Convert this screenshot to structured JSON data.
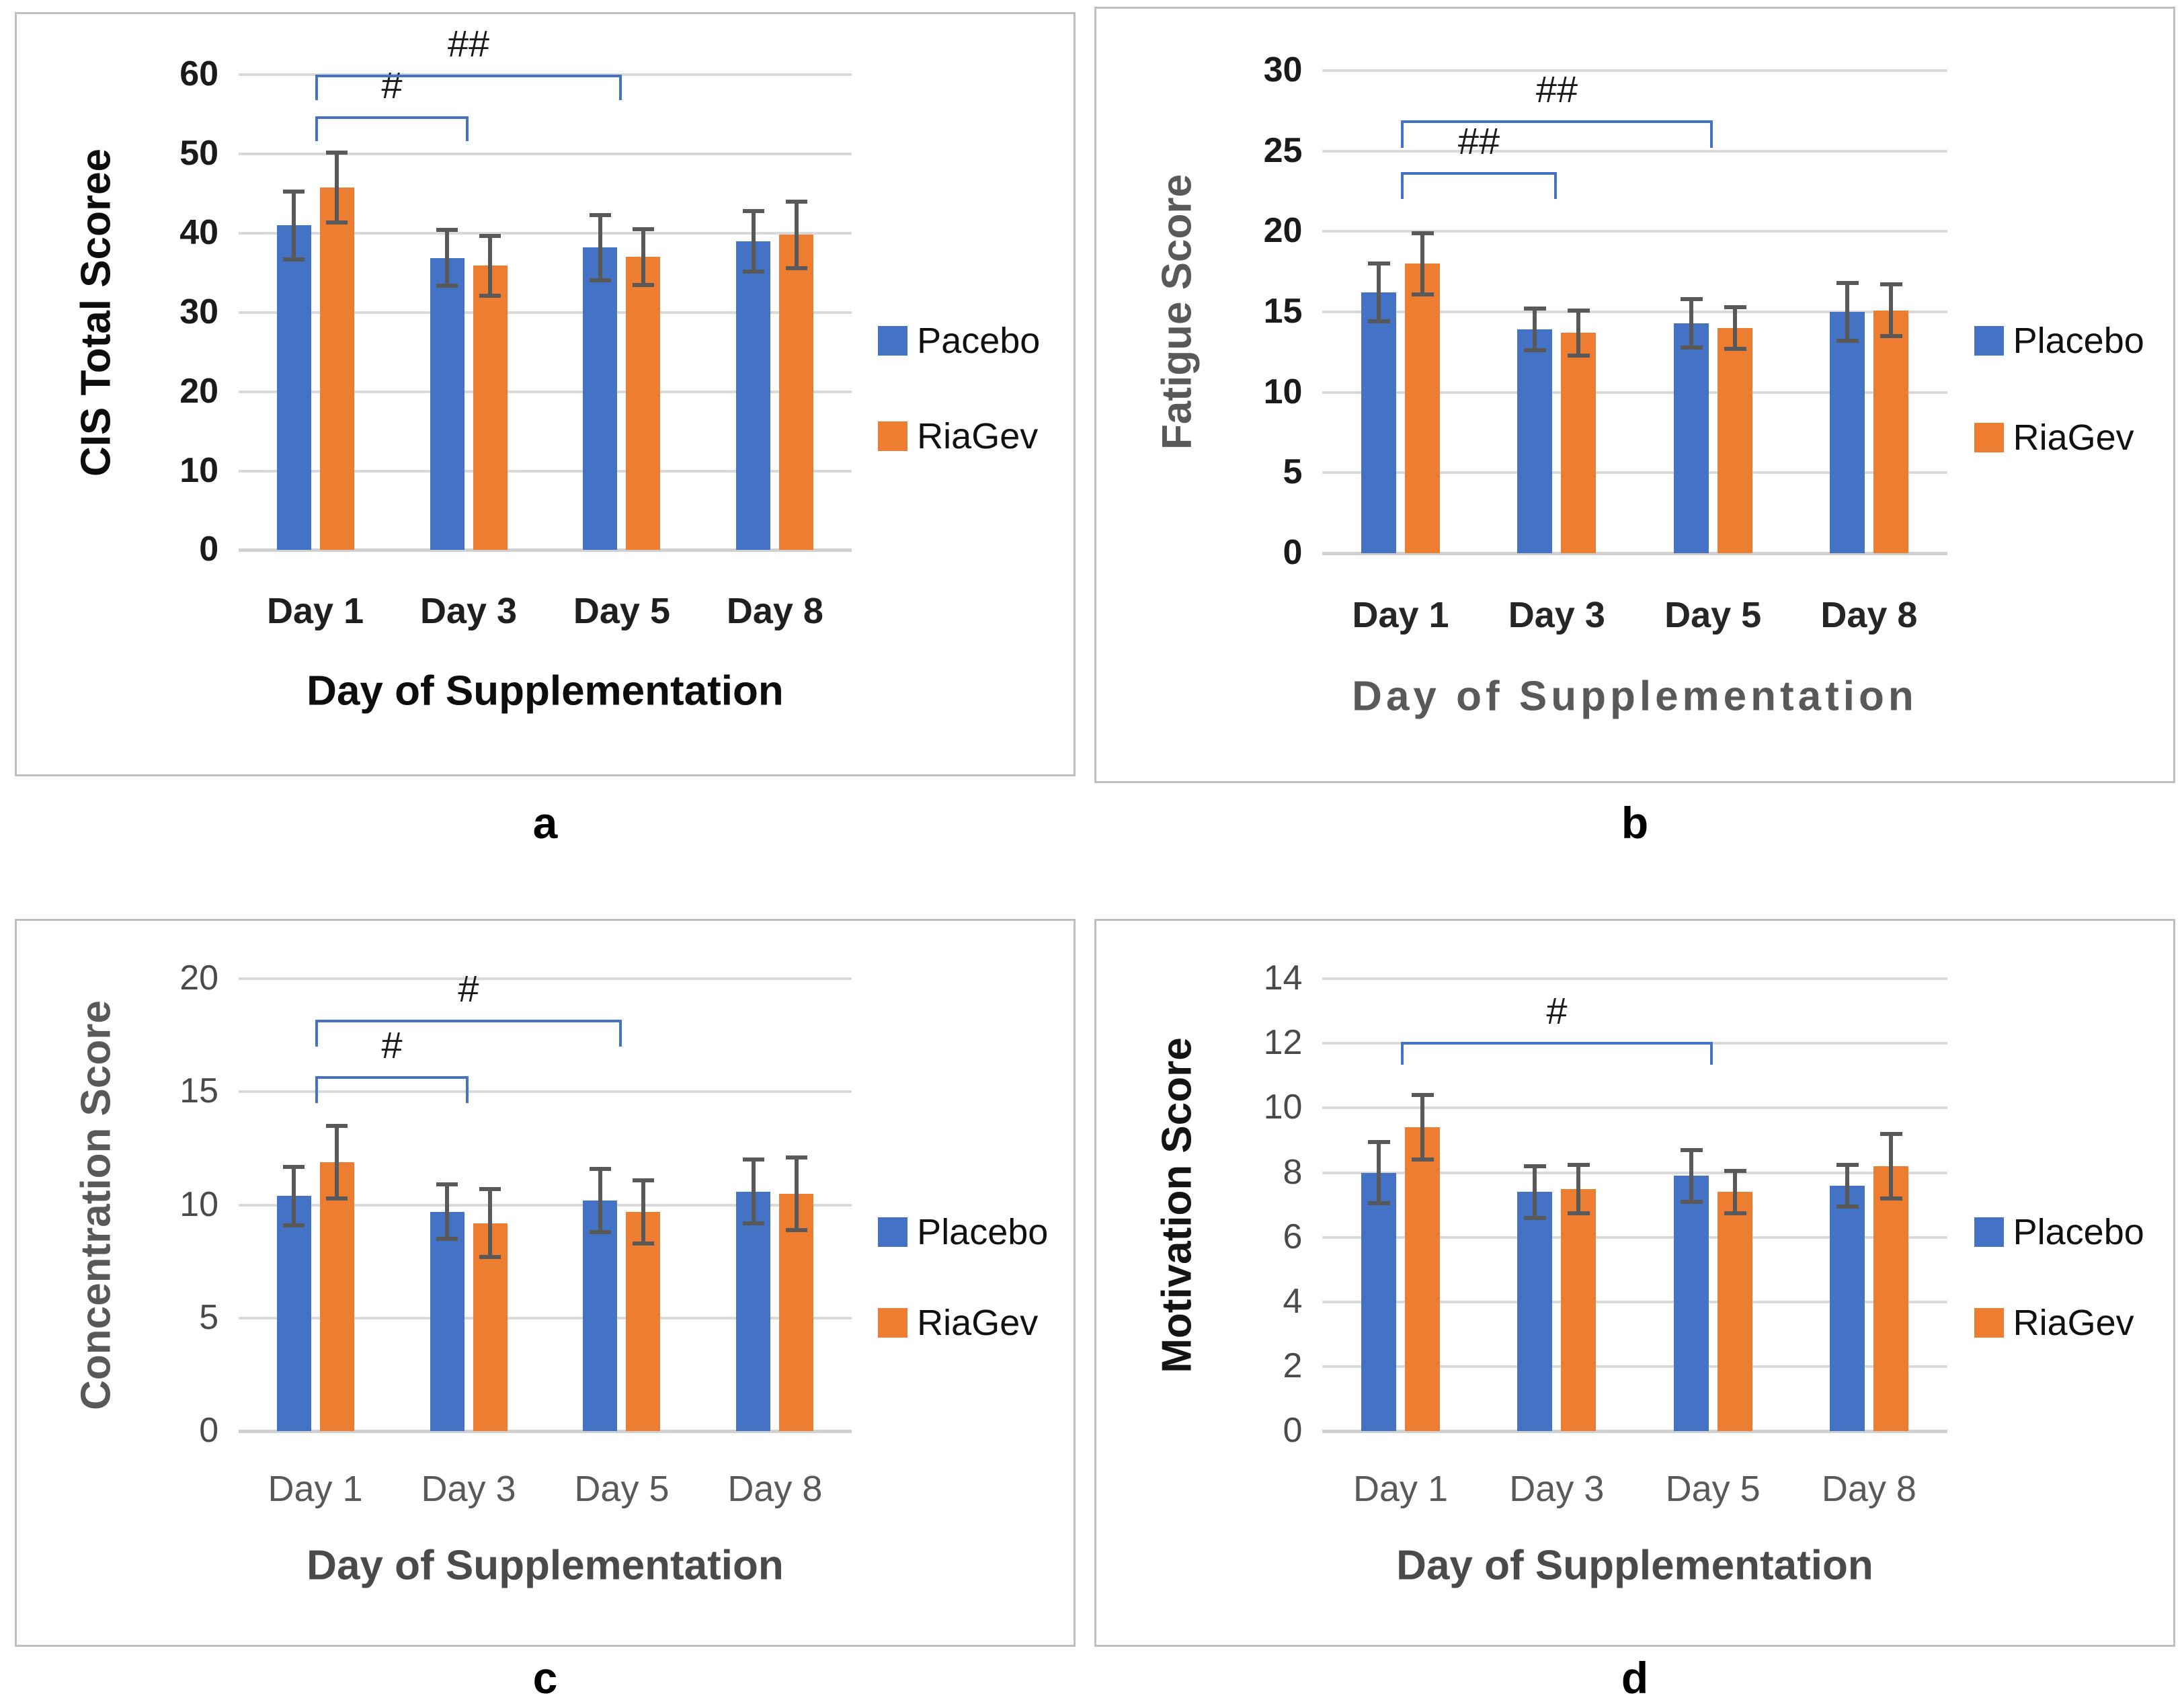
{
  "figure": {
    "background": "#ffffff",
    "panel_border_color": "#bfbfbf"
  },
  "colors": {
    "grid": "#d9d9d9",
    "axis_line": "#cfcfcf",
    "error_bar": "#595959",
    "bracket": "#4472c4",
    "bracket_label": "#1a1a1a",
    "legend_text": "#111111"
  },
  "chart_data": [
    {
      "type": "bar",
      "panel_label": "a",
      "ylabel": "CIS Total Scoree",
      "xlabel": "Day of Supplementation",
      "ylim": [
        0,
        60
      ],
      "yticks": [
        0,
        10,
        20,
        30,
        40,
        50,
        60
      ],
      "grid": true,
      "legend_position": "right",
      "categories": [
        "Day 1",
        "Day 3",
        "Day 5",
        "Day 8"
      ],
      "series": [
        {
          "name": "Pacebo",
          "color": "#4472C4",
          "values": [
            41,
            36.9,
            38.2,
            39
          ],
          "errors": [
            4.3,
            3.5,
            4.1,
            3.8
          ]
        },
        {
          "name": "RiaGev",
          "color": "#ED7D31",
          "values": [
            45.8,
            35.9,
            37,
            39.8
          ],
          "errors": [
            4.4,
            3.8,
            3.5,
            4.2
          ]
        }
      ],
      "significance_brackets": [
        {
          "label": "#",
          "from_category": "Day 1",
          "to_category": "Day 3",
          "from": 0,
          "to": 1,
          "y": 54.8,
          "drop": 3.2
        },
        {
          "label": "##",
          "from_category": "Day 1",
          "to_category": "Day 5",
          "from": 0,
          "to": 2,
          "y": 60,
          "drop": 3.2
        }
      ],
      "style": {
        "ylabel_color": "#0d0d0d",
        "xlabel_color": "#0d0d0d",
        "tick_color": "#1a1a1a",
        "category_color": "#1f1f1f"
      }
    },
    {
      "type": "bar",
      "panel_label": "b",
      "ylabel": "Fatigue Score",
      "xlabel": "Day of Supplementation",
      "ylim": [
        0,
        30
      ],
      "yticks": [
        0,
        5,
        10,
        15,
        20,
        25,
        30
      ],
      "grid": true,
      "legend_position": "right",
      "categories": [
        "Day 1",
        "Day 3",
        "Day 5",
        "Day 8"
      ],
      "series": [
        {
          "name": "Placebo",
          "color": "#4472C4",
          "values": [
            16.2,
            13.9,
            14.3,
            15
          ],
          "errors": [
            1.8,
            1.3,
            1.5,
            1.8
          ]
        },
        {
          "name": "RiaGev",
          "color": "#ED7D31",
          "values": [
            18,
            13.7,
            14,
            15.1
          ],
          "errors": [
            1.9,
            1.4,
            1.3,
            1.6
          ]
        }
      ],
      "significance_brackets": [
        {
          "label": "##",
          "from_category": "Day 1",
          "to_category": "Day 3",
          "from": 0,
          "to": 1,
          "y": 23.7,
          "drop": 1.7
        },
        {
          "label": "##",
          "from_category": "Day 1",
          "to_category": "Day 5",
          "from": 0,
          "to": 2,
          "y": 26.9,
          "drop": 1.7
        }
      ],
      "style": {
        "ylabel_color": "#595959",
        "xlabel_color": "#595959",
        "tick_color": "#1a1a1a",
        "category_color": "#262626"
      }
    },
    {
      "type": "bar",
      "panel_label": "c",
      "ylabel": "Concentration Score",
      "xlabel": "Day of Supplementation",
      "ylim": [
        0,
        20
      ],
      "yticks": [
        0,
        5,
        10,
        15,
        20
      ],
      "grid": true,
      "legend_position": "right",
      "categories": [
        "Day 1",
        "Day 3",
        "Day 5",
        "Day 8"
      ],
      "series": [
        {
          "name": "Placebo",
          "color": "#4472C4",
          "values": [
            10.4,
            9.7,
            10.2,
            10.6
          ],
          "errors": [
            1.3,
            1.2,
            1.4,
            1.4
          ]
        },
        {
          "name": "RiaGev",
          "color": "#ED7D31",
          "values": [
            11.9,
            9.2,
            9.7,
            10.5
          ],
          "errors": [
            1.6,
            1.5,
            1.4,
            1.6
          ]
        }
      ],
      "significance_brackets": [
        {
          "label": "#",
          "from_category": "Day 1",
          "to_category": "Day 3",
          "from": 0,
          "to": 1,
          "y": 15.7,
          "drop": 1.2
        },
        {
          "label": "#",
          "from_category": "Day 1",
          "to_category": "Day 5",
          "from": 0,
          "to": 2,
          "y": 18.2,
          "drop": 1.2
        }
      ],
      "style": {
        "ylabel_color": "#595959",
        "xlabel_color": "#4a4a4a",
        "tick_color": "#4a4a4a",
        "category_color": "#595959"
      }
    },
    {
      "type": "bar",
      "panel_label": "d",
      "ylabel": "Motivation Score",
      "xlabel": "Day of Supplementation",
      "ylim": [
        0,
        14
      ],
      "yticks": [
        0,
        2,
        4,
        6,
        8,
        10,
        12,
        14
      ],
      "grid": true,
      "legend_position": "right",
      "categories": [
        "Day 1",
        "Day 3",
        "Day 5",
        "Day 8"
      ],
      "series": [
        {
          "name": "Placebo",
          "color": "#4472C4",
          "values": [
            8,
            7.4,
            7.9,
            7.6
          ],
          "errors": [
            0.95,
            0.8,
            0.8,
            0.65
          ]
        },
        {
          "name": "RiaGev",
          "color": "#ED7D31",
          "values": [
            9.4,
            7.5,
            7.4,
            8.2
          ],
          "errors": [
            1,
            0.75,
            0.65,
            1
          ]
        }
      ],
      "significance_brackets": [
        {
          "label": "#",
          "from_category": "Day 1",
          "to_category": "Day 5",
          "from": 0,
          "to": 2,
          "y": 12.05,
          "drop": 0.7
        }
      ],
      "style": {
        "ylabel_color": "#141414",
        "xlabel_color": "#4a4a4a",
        "tick_color": "#4a4a4a",
        "category_color": "#595959"
      }
    }
  ]
}
